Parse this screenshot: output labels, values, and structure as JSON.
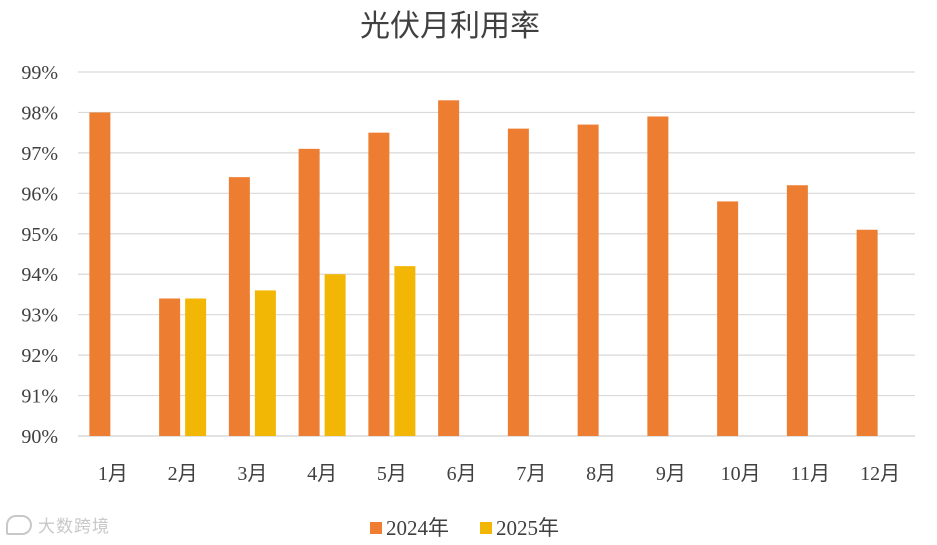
{
  "chart_data": {
    "type": "bar",
    "title": "光伏月利用率",
    "categories": [
      "1月",
      "2月",
      "3月",
      "4月",
      "5月",
      "6月",
      "7月",
      "8月",
      "9月",
      "10月",
      "11月",
      "12月"
    ],
    "series": [
      {
        "name": "2024年",
        "color": "#ED7D31",
        "values": [
          98.0,
          93.4,
          96.4,
          97.1,
          97.5,
          98.3,
          97.6,
          97.7,
          97.9,
          95.8,
          96.2,
          95.1
        ]
      },
      {
        "name": "2025年",
        "color": "#F2B705",
        "values": [
          null,
          93.4,
          93.6,
          94.0,
          94.2,
          null,
          null,
          null,
          null,
          null,
          null,
          null
        ]
      }
    ],
    "y_ticks": [
      "90%",
      "91%",
      "92%",
      "93%",
      "94%",
      "95%",
      "96%",
      "97%",
      "98%",
      "99%"
    ],
    "ylim": [
      90,
      99
    ],
    "grid": true,
    "legend_position": "bottom-center"
  },
  "watermark": {
    "text": "大数跨境"
  }
}
